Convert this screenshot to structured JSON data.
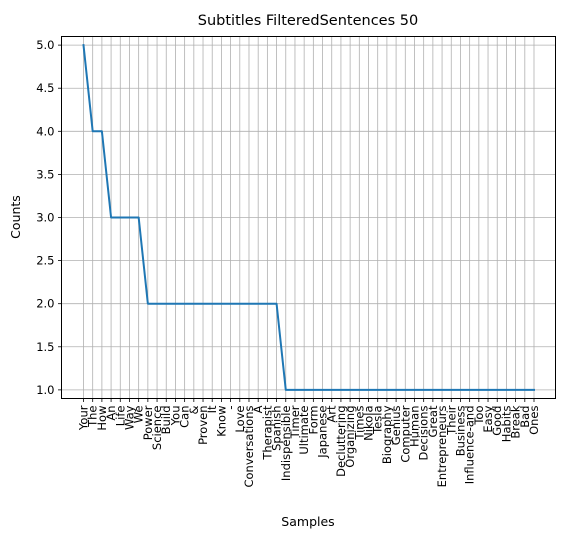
{
  "chart_data": {
    "type": "line",
    "title": "Subtitles FilteredSentences 50",
    "xlabel": "Samples",
    "ylabel": "Counts",
    "ylim": [
      0.9,
      5.1
    ],
    "yticks": [
      "1.0",
      "1.5",
      "2.0",
      "2.5",
      "3.0",
      "3.5",
      "4.0",
      "4.5",
      "5.0"
    ],
    "grid": true,
    "line_color": "#1f77b4",
    "categories": [
      "Your",
      "The",
      "How",
      "An",
      "Life",
      "Way",
      "We",
      "Power",
      "Science",
      "Build",
      "You",
      "Can",
      "&",
      "Proven",
      "It",
      "Know",
      "-",
      "Love",
      "Conversations",
      "A",
      "Therapist",
      "Spanish",
      "Indispensible",
      "Timer",
      "Ultimate",
      "Form",
      "Japanese",
      "Art",
      "Decluttering",
      "Organizing",
      "Times",
      "Nikola",
      "Tesla",
      "Biography",
      "Genius",
      "Computer",
      "Human",
      "Decisions",
      "Great",
      "Entrepreneurs",
      "Their",
      "Business",
      "Influence-and",
      "Too",
      "Easy",
      "Good",
      "Habits",
      "Break",
      "Bad",
      "Ones"
    ],
    "values": [
      5,
      4,
      4,
      3,
      3,
      3,
      3,
      2,
      2,
      2,
      2,
      2,
      2,
      2,
      2,
      2,
      2,
      2,
      2,
      2,
      2,
      2,
      1,
      1,
      1,
      1,
      1,
      1,
      1,
      1,
      1,
      1,
      1,
      1,
      1,
      1,
      1,
      1,
      1,
      1,
      1,
      1,
      1,
      1,
      1,
      1,
      1,
      1,
      1,
      1
    ]
  }
}
